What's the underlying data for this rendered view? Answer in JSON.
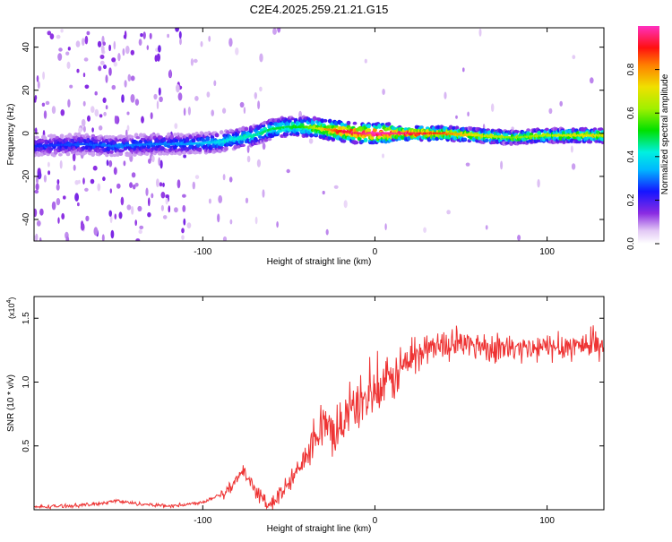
{
  "title": "C2E4.2025.259.21.21.G15",
  "chart_data": [
    {
      "type": "heatmap",
      "xlabel": "Height of straight line (km)",
      "ylabel": "Frequency (Hz)",
      "xlim": [
        -198,
        133
      ],
      "ylim": [
        -50,
        49
      ],
      "xticks": [
        -100,
        0,
        100
      ],
      "xtick_labels": [
        "-100",
        "0",
        "100"
      ],
      "yticks": [
        -40,
        -20,
        0,
        20,
        40
      ],
      "ytick_labels": [
        "-40",
        "-20",
        "0",
        "20",
        "40"
      ],
      "colorbar": {
        "label": "Normalized spectral amplitude",
        "range": [
          0,
          1
        ],
        "ticks": [
          0.0,
          0.2,
          0.4,
          0.6,
          0.8
        ],
        "tick_labels": [
          "0.0",
          "0.2",
          "0.4",
          "0.6",
          "0.8"
        ]
      },
      "ridge": {
        "x": [
          -198,
          -170,
          -150,
          -130,
          -110,
          -90,
          -70,
          -60,
          -50,
          -40,
          -30,
          -20,
          -10,
          0,
          20,
          40,
          60,
          80,
          100,
          120,
          133
        ],
        "freq": [
          -6,
          -5,
          -6,
          -5,
          -5,
          -4,
          -1,
          2,
          3,
          3,
          2,
          1,
          0,
          0,
          0,
          0,
          -1,
          -2,
          -1,
          -1,
          -1
        ],
        "amplitude": [
          0.25,
          0.28,
          0.3,
          0.3,
          0.32,
          0.4,
          0.45,
          0.5,
          0.5,
          0.55,
          0.75,
          0.9,
          0.95,
          1.0,
          0.95,
          0.85,
          0.7,
          0.6,
          0.65,
          0.7,
          0.7
        ]
      }
    },
    {
      "type": "line",
      "xlabel": "Height of straight line (km)",
      "ylabel": "SNR (10 * v/v)",
      "scale_label": "(x10",
      "scale_exp": "4",
      "scale_close": ")",
      "xlim": [
        -198,
        133
      ],
      "ylim": [
        0,
        1.67
      ],
      "xticks": [
        -100,
        0,
        100
      ],
      "xtick_labels": [
        "-100",
        "0",
        "100"
      ],
      "yticks": [
        0.5,
        1.0,
        1.5
      ],
      "ytick_labels": [
        "0.5",
        "1.0",
        "1.5"
      ],
      "color": "#ee3333",
      "series": [
        {
          "name": "SNR",
          "x": [
            -198,
            -180,
            -165,
            -150,
            -140,
            -130,
            -120,
            -110,
            -100,
            -90,
            -85,
            -80,
            -76,
            -72,
            -68,
            -64,
            -60,
            -55,
            -50,
            -45,
            -40,
            -35,
            -30,
            -25,
            -20,
            -15,
            -10,
            -5,
            0,
            5,
            10,
            15,
            20,
            25,
            30,
            35,
            40,
            50,
            60,
            70,
            80,
            90,
            100,
            110,
            120,
            133
          ],
          "y": [
            0.02,
            0.03,
            0.04,
            0.07,
            0.05,
            0.04,
            0.03,
            0.04,
            0.06,
            0.12,
            0.16,
            0.24,
            0.3,
            0.22,
            0.12,
            0.07,
            0.05,
            0.12,
            0.2,
            0.3,
            0.45,
            0.62,
            0.65,
            0.6,
            0.68,
            0.75,
            0.83,
            0.88,
            0.9,
            0.95,
            1.02,
            1.1,
            1.18,
            1.22,
            1.26,
            1.28,
            1.29,
            1.3,
            1.29,
            1.27,
            1.26,
            1.25,
            1.27,
            1.28,
            1.29,
            1.3
          ]
        }
      ]
    }
  ]
}
